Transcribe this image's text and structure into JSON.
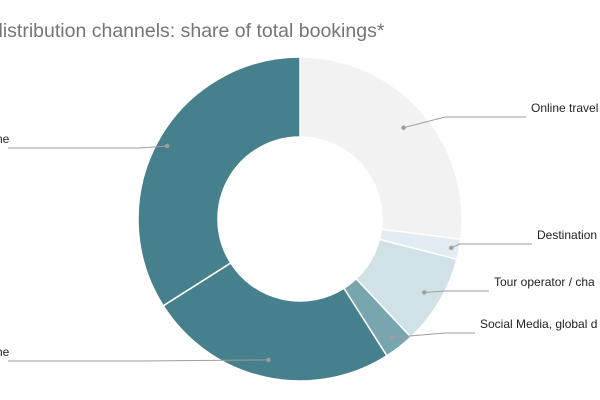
{
  "chart_data": {
    "type": "pie",
    "donut": true,
    "title": "distribution channels: share of total bookings*",
    "slices": [
      {
        "label": "Online travel",
        "value": 27,
        "color": "#f2f2f2"
      },
      {
        "label": "Destination",
        "value": 2,
        "color": "#e3ebf3"
      },
      {
        "label": "Tour operator / cha",
        "value": 9,
        "color": "#d0e2e6"
      },
      {
        "label": "Social Media, global d",
        "value": 3,
        "color": "#78a6ae"
      },
      {
        "label": "ne",
        "value": 25,
        "color": "#47808d"
      },
      {
        "label": "ne",
        "value": 34,
        "color": "#47808d"
      }
    ],
    "legend": "none",
    "labels": "outside-with-leader-lines"
  }
}
